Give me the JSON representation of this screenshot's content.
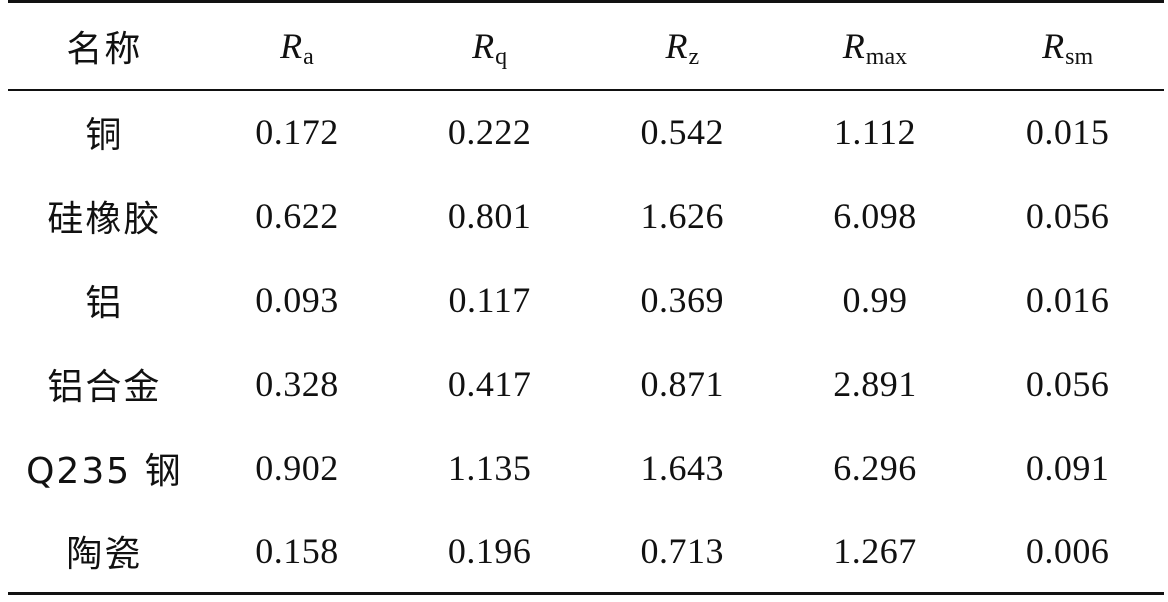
{
  "table": {
    "header": {
      "name_label": "名称",
      "columns": [
        {
          "symbol": "R",
          "subscript": "a"
        },
        {
          "symbol": "R",
          "subscript": "q"
        },
        {
          "symbol": "R",
          "subscript": "z"
        },
        {
          "symbol": "R",
          "subscript": "max"
        },
        {
          "symbol": "R",
          "subscript": "sm"
        }
      ]
    },
    "rows": [
      {
        "name": "铜",
        "values": [
          "0.172",
          "0.222",
          "0.542",
          "1.112",
          "0.015"
        ]
      },
      {
        "name": "硅橡胶",
        "values": [
          "0.622",
          "0.801",
          "1.626",
          "6.098",
          "0.056"
        ]
      },
      {
        "name": "铝",
        "values": [
          "0.093",
          "0.117",
          "0.369",
          "0.99",
          "0.016"
        ]
      },
      {
        "name": "铝合金",
        "values": [
          "0.328",
          "0.417",
          "0.871",
          "2.891",
          "0.056"
        ]
      },
      {
        "name": "Q235 钢",
        "values": [
          "0.902",
          "1.135",
          "1.643",
          "6.296",
          "0.091"
        ]
      },
      {
        "name": "陶瓷",
        "values": [
          "0.158",
          "0.196",
          "0.713",
          "1.267",
          "0.006"
        ]
      }
    ]
  }
}
